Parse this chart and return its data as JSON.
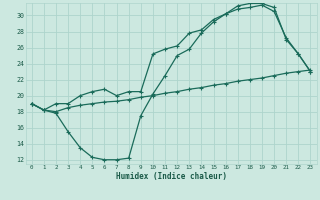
{
  "xlabel": "Humidex (Indice chaleur)",
  "bg_color": "#cce8e0",
  "grid_color": "#aed4cc",
  "line_color": "#1a6b5a",
  "tick_color": "#1a5a48",
  "xlim": [
    -0.5,
    23.5
  ],
  "ylim": [
    11.5,
    31.5
  ],
  "xticks": [
    0,
    1,
    2,
    3,
    4,
    5,
    6,
    7,
    8,
    9,
    10,
    11,
    12,
    13,
    14,
    15,
    16,
    17,
    18,
    19,
    20,
    21,
    22,
    23
  ],
  "yticks": [
    12,
    14,
    16,
    18,
    20,
    22,
    24,
    26,
    28,
    30
  ],
  "line1_x": [
    0,
    1,
    2,
    3,
    4,
    5,
    6,
    7,
    8,
    9,
    10,
    11,
    12,
    13,
    14,
    15,
    16,
    17,
    18,
    19,
    20,
    21,
    22,
    23
  ],
  "line1_y": [
    19.0,
    18.2,
    18.0,
    18.5,
    18.8,
    19.0,
    19.2,
    19.3,
    19.5,
    19.8,
    20.0,
    20.3,
    20.5,
    20.8,
    21.0,
    21.3,
    21.5,
    21.8,
    22.0,
    22.2,
    22.5,
    22.8,
    23.0,
    23.2
  ],
  "line2_x": [
    0,
    1,
    2,
    3,
    4,
    5,
    6,
    7,
    8,
    9,
    10,
    11,
    12,
    13,
    14,
    15,
    16,
    17,
    18,
    19,
    20,
    21,
    22,
    23
  ],
  "line2_y": [
    19.0,
    18.2,
    17.8,
    15.5,
    13.5,
    12.3,
    12.0,
    12.0,
    12.2,
    17.5,
    20.2,
    22.5,
    25.0,
    25.8,
    27.8,
    29.2,
    30.2,
    30.8,
    31.0,
    31.3,
    30.5,
    27.2,
    25.2,
    23.0
  ],
  "line3_x": [
    0,
    1,
    2,
    3,
    4,
    5,
    6,
    7,
    8,
    9,
    10,
    11,
    12,
    13,
    14,
    15,
    16,
    17,
    18,
    19,
    20,
    21,
    22,
    23
  ],
  "line3_y": [
    19.0,
    18.2,
    19.0,
    19.0,
    20.0,
    20.5,
    20.8,
    20.0,
    20.5,
    20.5,
    25.2,
    25.8,
    26.2,
    27.8,
    28.2,
    29.5,
    30.2,
    31.2,
    31.5,
    31.5,
    31.0,
    27.0,
    25.2,
    23.0
  ]
}
